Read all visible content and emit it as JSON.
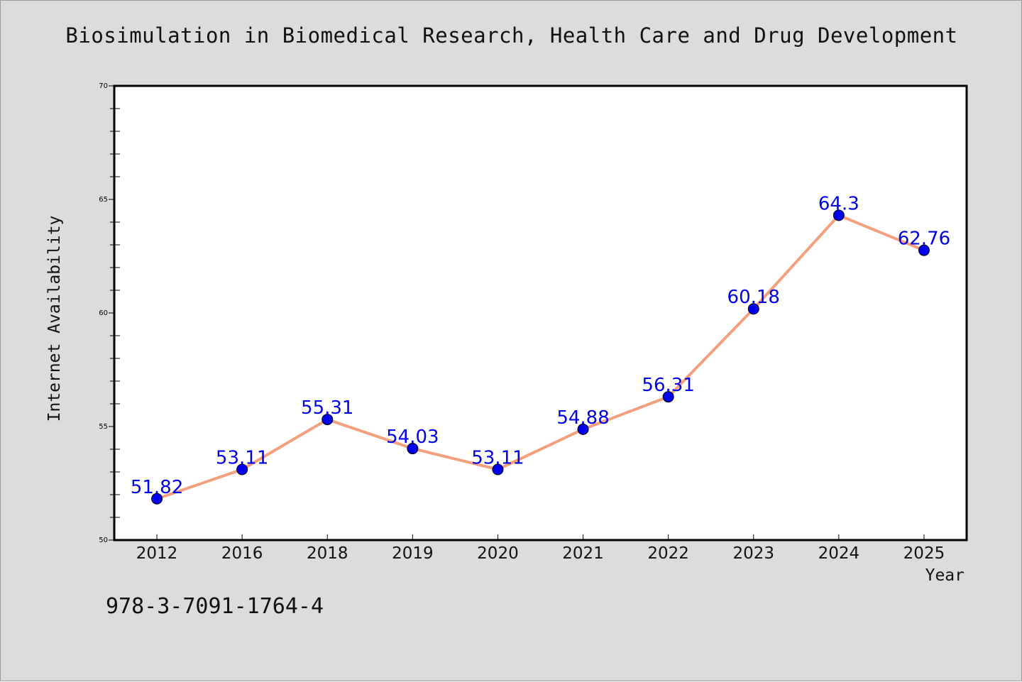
{
  "chart_data": {
    "type": "line",
    "title": "Biosimulation in Biomedical Research, Health Care and Drug Development",
    "xlabel": "Year",
    "ylabel": "Internet Availability",
    "categories": [
      "2012",
      "2016",
      "2018",
      "2019",
      "2020",
      "2021",
      "2022",
      "2023",
      "2024",
      "2025"
    ],
    "series": [
      {
        "values": [
          51.82,
          53.11,
          55.31,
          54.03,
          53.11,
          54.88,
          56.31,
          60.18,
          64.3,
          62.76
        ],
        "labels": [
          "51.82",
          "53.11",
          "55.31",
          "54.03",
          "53.11",
          "54.88",
          "56.31",
          "60.18",
          "64.3",
          "62.76"
        ]
      }
    ],
    "ylim": [
      50,
      70
    ],
    "yticks": [
      "50",
      "55",
      "60",
      "65",
      "70"
    ],
    "grid": false,
    "colors": {
      "line": "#f4a07e",
      "marker": "#0000ee",
      "label": "#0000ee",
      "background": "#dcdcdc",
      "plot_background": "#ffffff"
    }
  },
  "footer": {
    "isbn": "978-3-7091-1764-4"
  }
}
